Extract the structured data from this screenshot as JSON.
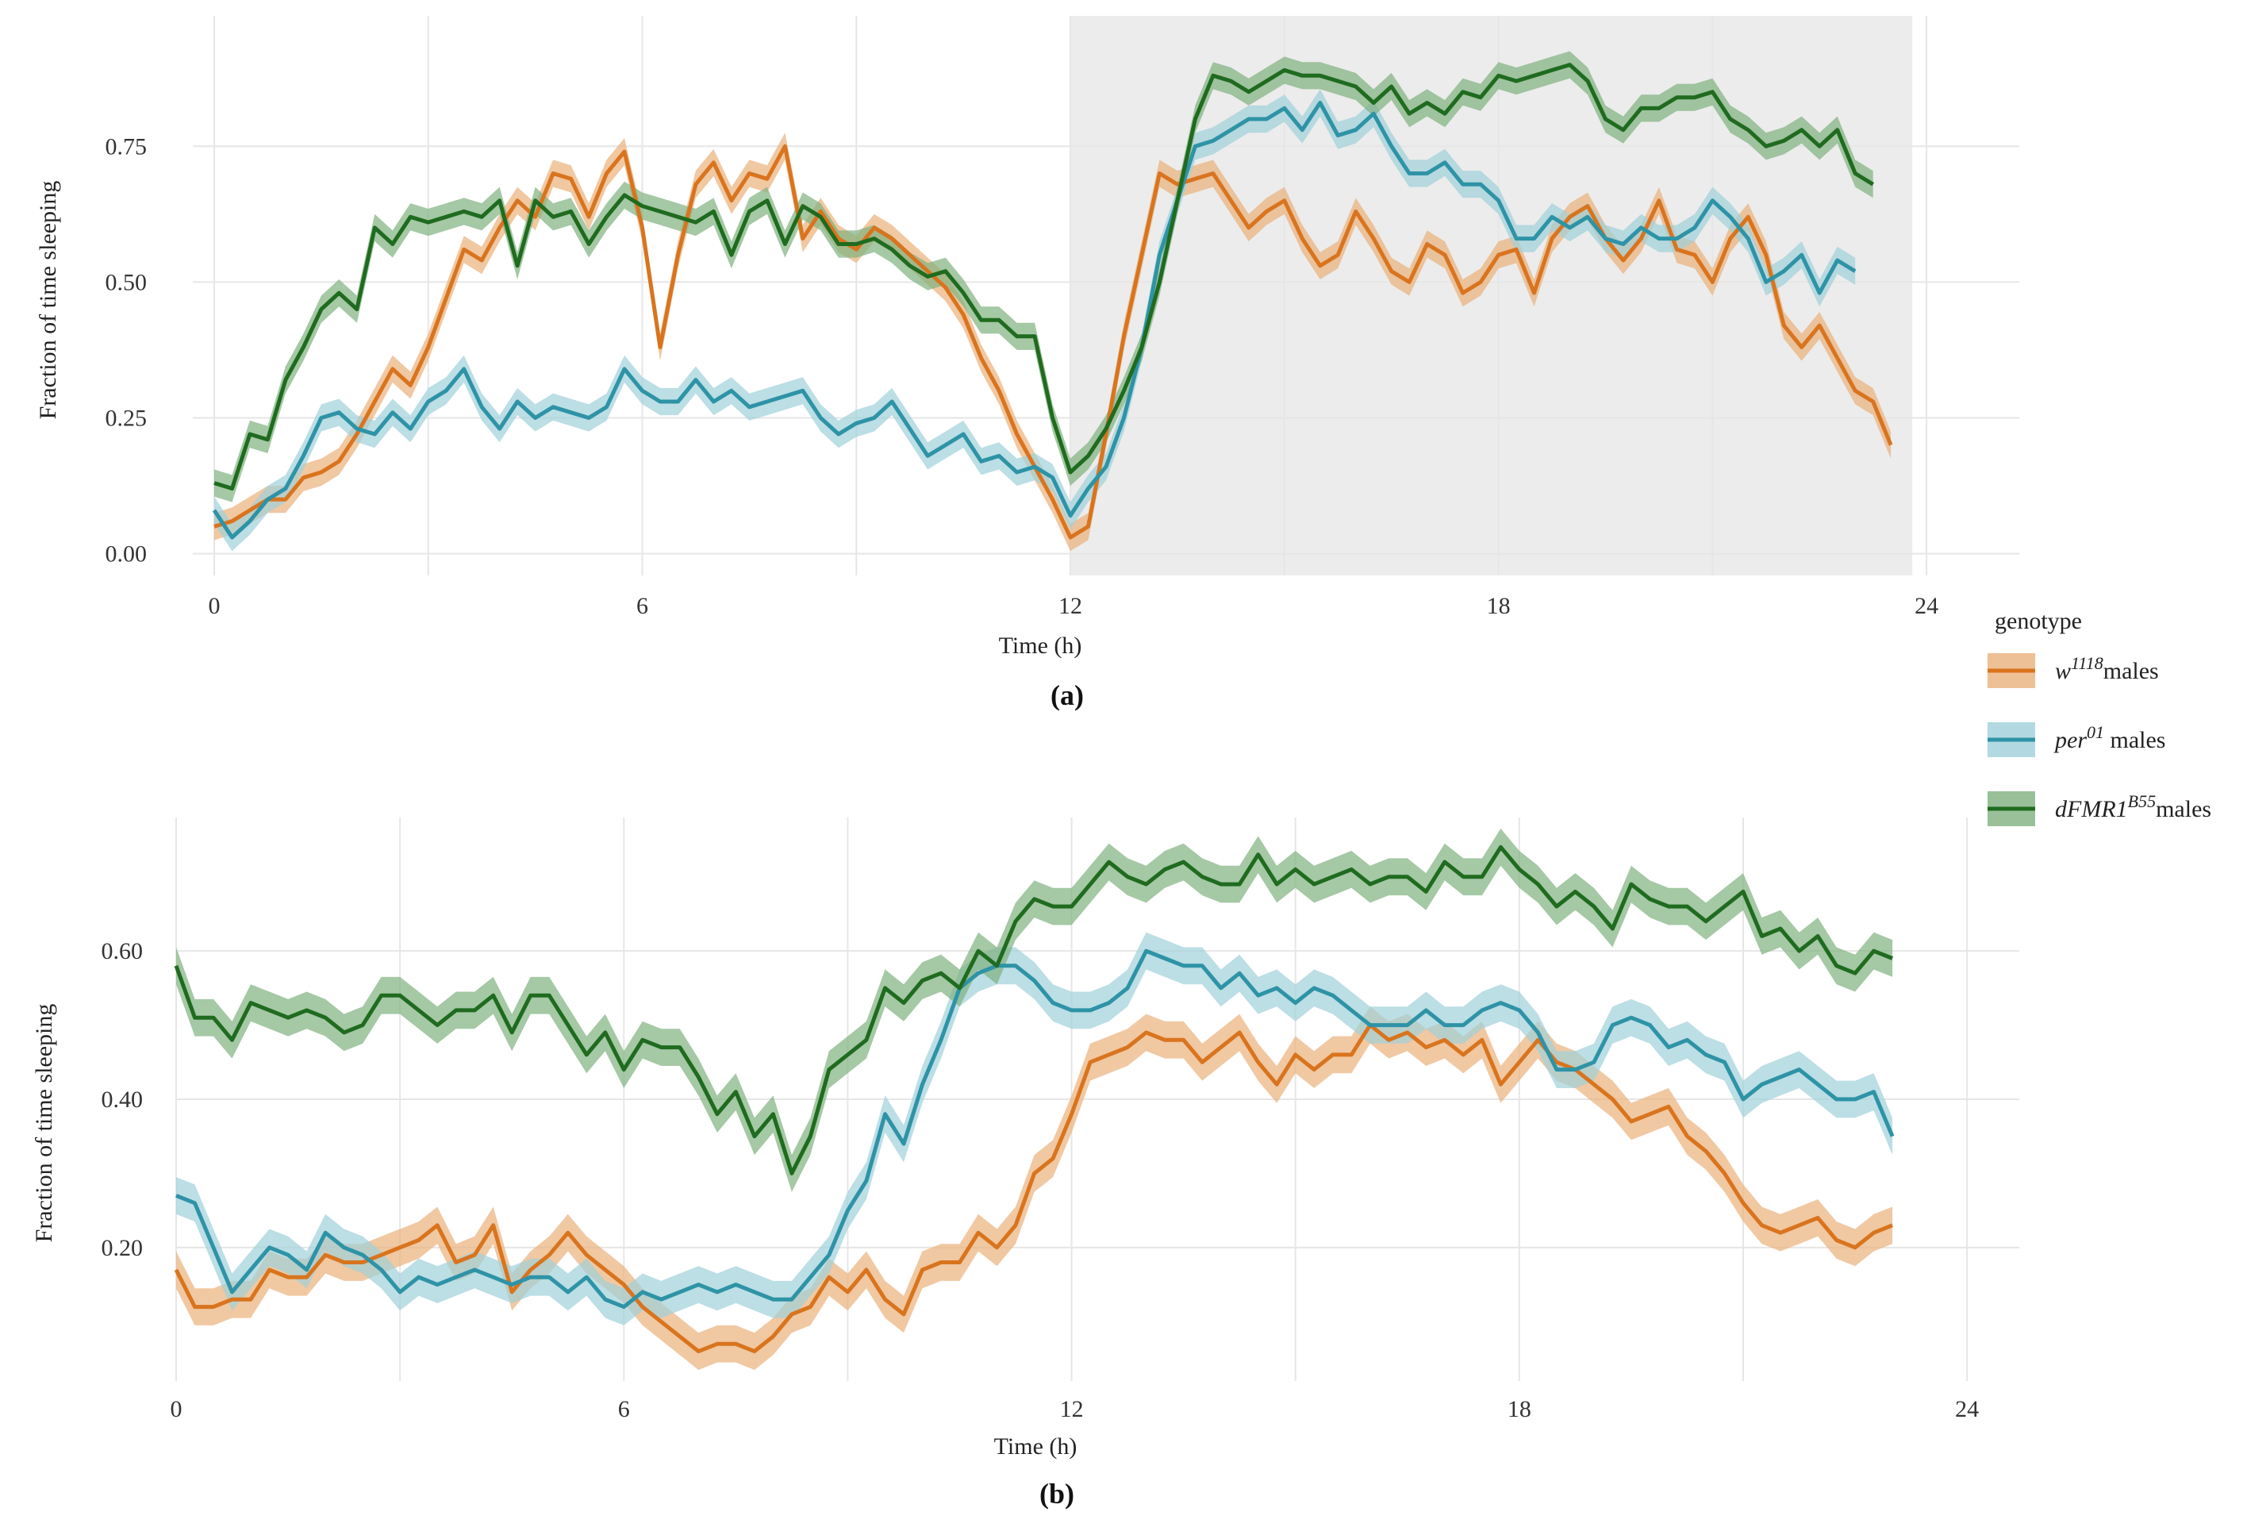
{
  "legend": {
    "title": "genotype",
    "entries": [
      {
        "key": "w1118",
        "name": "w",
        "sup": "1118",
        "suffix": "males",
        "color": "#d9741e",
        "band": "#eab07a"
      },
      {
        "key": "per01",
        "name": "per",
        "sup": "01",
        "suffix": " males",
        "color": "#2e93a6",
        "band": "#9fd0da"
      },
      {
        "key": "dFMR1",
        "name": "dFMR1",
        "sup": "B55",
        "suffix": "males",
        "color": "#1f6b1f",
        "band": "#7fb07f"
      }
    ]
  },
  "chart_data": [
    {
      "type": "line",
      "panel_label": "(a)",
      "xlabel": "Time  (h)",
      "ylabel": "Fraction of time sleeping",
      "xlim": [
        -0.3,
        25.3
      ],
      "ylim": [
        -0.04,
        0.99
      ],
      "x_ticks": [
        0,
        6,
        12,
        18,
        24
      ],
      "y_ticks": [
        0.0,
        0.25,
        0.5,
        0.75
      ],
      "y_tick_labels": [
        "0.00",
        "0.25",
        "0.50",
        "0.75"
      ],
      "dark_period": [
        12,
        23.8
      ],
      "band_halfwidth": 0.025,
      "x_start": 0,
      "x_step": 0.25,
      "series": [
        {
          "name": "w1118 males",
          "values": [
            0.05,
            0.06,
            0.08,
            0.1,
            0.1,
            0.14,
            0.15,
            0.17,
            0.22,
            0.28,
            0.34,
            0.31,
            0.38,
            0.47,
            0.56,
            0.54,
            0.6,
            0.65,
            0.62,
            0.7,
            0.69,
            0.62,
            0.7,
            0.74,
            0.6,
            0.38,
            0.55,
            0.68,
            0.72,
            0.65,
            0.7,
            0.69,
            0.75,
            0.58,
            0.63,
            0.58,
            0.56,
            0.6,
            0.58,
            0.55,
            0.52,
            0.49,
            0.44,
            0.36,
            0.3,
            0.22,
            0.16,
            0.1,
            0.03,
            0.05,
            0.22,
            0.4,
            0.55,
            0.7,
            0.68,
            0.69,
            0.7,
            0.65,
            0.6,
            0.63,
            0.65,
            0.58,
            0.53,
            0.55,
            0.63,
            0.58,
            0.52,
            0.5,
            0.57,
            0.55,
            0.48,
            0.5,
            0.55,
            0.56,
            0.48,
            0.58,
            0.62,
            0.64,
            0.58,
            0.54,
            0.58,
            0.65,
            0.56,
            0.55,
            0.5,
            0.58,
            0.62,
            0.55,
            0.42,
            0.38,
            0.42,
            0.36,
            0.3,
            0.28,
            0.2
          ]
        },
        {
          "name": "per01 males",
          "values": [
            0.08,
            0.03,
            0.06,
            0.1,
            0.12,
            0.18,
            0.25,
            0.26,
            0.23,
            0.22,
            0.26,
            0.23,
            0.28,
            0.3,
            0.34,
            0.27,
            0.23,
            0.28,
            0.25,
            0.27,
            0.26,
            0.25,
            0.27,
            0.34,
            0.3,
            0.28,
            0.28,
            0.32,
            0.28,
            0.3,
            0.27,
            0.28,
            0.29,
            0.3,
            0.25,
            0.22,
            0.24,
            0.25,
            0.28,
            0.23,
            0.18,
            0.2,
            0.22,
            0.17,
            0.18,
            0.15,
            0.16,
            0.14,
            0.07,
            0.12,
            0.16,
            0.25,
            0.38,
            0.55,
            0.65,
            0.75,
            0.76,
            0.78,
            0.8,
            0.8,
            0.82,
            0.78,
            0.83,
            0.77,
            0.78,
            0.81,
            0.75,
            0.7,
            0.7,
            0.72,
            0.68,
            0.68,
            0.65,
            0.58,
            0.58,
            0.62,
            0.6,
            0.62,
            0.58,
            0.57,
            0.6,
            0.58,
            0.58,
            0.6,
            0.65,
            0.62,
            0.58,
            0.5,
            0.52,
            0.55,
            0.48,
            0.54,
            0.52
          ]
        },
        {
          "name": "dFMR1B55 males",
          "values": [
            0.13,
            0.12,
            0.22,
            0.21,
            0.32,
            0.38,
            0.45,
            0.48,
            0.45,
            0.6,
            0.57,
            0.62,
            0.61,
            0.62,
            0.63,
            0.62,
            0.65,
            0.53,
            0.65,
            0.62,
            0.63,
            0.57,
            0.62,
            0.66,
            0.64,
            0.63,
            0.62,
            0.61,
            0.63,
            0.55,
            0.63,
            0.65,
            0.57,
            0.64,
            0.62,
            0.57,
            0.57,
            0.58,
            0.56,
            0.53,
            0.51,
            0.52,
            0.48,
            0.43,
            0.43,
            0.4,
            0.4,
            0.25,
            0.15,
            0.18,
            0.23,
            0.3,
            0.38,
            0.5,
            0.65,
            0.8,
            0.88,
            0.87,
            0.85,
            0.87,
            0.89,
            0.88,
            0.88,
            0.87,
            0.86,
            0.83,
            0.86,
            0.81,
            0.83,
            0.81,
            0.85,
            0.84,
            0.88,
            0.87,
            0.88,
            0.89,
            0.9,
            0.87,
            0.8,
            0.78,
            0.82,
            0.82,
            0.84,
            0.84,
            0.85,
            0.8,
            0.78,
            0.75,
            0.76,
            0.78,
            0.75,
            0.78,
            0.7,
            0.68
          ]
        }
      ]
    },
    {
      "type": "line",
      "panel_label": "(b)",
      "xlabel": "Time  (h)",
      "ylabel": "Fraction of time sleeping",
      "xlim": [
        0,
        24.7
      ],
      "ylim": [
        0.02,
        0.78
      ],
      "x_ticks": [
        0,
        6,
        12,
        18,
        24
      ],
      "y_ticks": [
        0.2,
        0.4,
        0.6
      ],
      "y_tick_labels": [
        "0.20",
        "0.40",
        "0.60"
      ],
      "dark_period": null,
      "band_halfwidth": 0.025,
      "x_start": 0,
      "x_step": 0.25,
      "series": [
        {
          "name": "w1118 males",
          "values": [
            0.17,
            0.12,
            0.12,
            0.13,
            0.13,
            0.17,
            0.16,
            0.16,
            0.19,
            0.18,
            0.18,
            0.19,
            0.2,
            0.21,
            0.23,
            0.18,
            0.19,
            0.23,
            0.14,
            0.17,
            0.19,
            0.22,
            0.19,
            0.17,
            0.15,
            0.12,
            0.1,
            0.08,
            0.06,
            0.07,
            0.07,
            0.06,
            0.08,
            0.11,
            0.12,
            0.16,
            0.14,
            0.17,
            0.13,
            0.11,
            0.17,
            0.18,
            0.18,
            0.22,
            0.2,
            0.23,
            0.3,
            0.32,
            0.38,
            0.45,
            0.46,
            0.47,
            0.49,
            0.48,
            0.48,
            0.45,
            0.47,
            0.49,
            0.45,
            0.42,
            0.46,
            0.44,
            0.46,
            0.46,
            0.5,
            0.48,
            0.49,
            0.47,
            0.48,
            0.46,
            0.48,
            0.42,
            0.45,
            0.48,
            0.45,
            0.44,
            0.42,
            0.4,
            0.37,
            0.38,
            0.39,
            0.35,
            0.33,
            0.3,
            0.26,
            0.23,
            0.22,
            0.23,
            0.24,
            0.21,
            0.2,
            0.22,
            0.23
          ]
        },
        {
          "name": "per01 males",
          "values": [
            0.27,
            0.26,
            0.2,
            0.14,
            0.17,
            0.2,
            0.19,
            0.17,
            0.22,
            0.2,
            0.19,
            0.17,
            0.14,
            0.16,
            0.15,
            0.16,
            0.17,
            0.16,
            0.15,
            0.16,
            0.16,
            0.14,
            0.16,
            0.13,
            0.12,
            0.14,
            0.13,
            0.14,
            0.15,
            0.14,
            0.15,
            0.14,
            0.13,
            0.13,
            0.16,
            0.19,
            0.25,
            0.29,
            0.38,
            0.34,
            0.42,
            0.48,
            0.55,
            0.57,
            0.58,
            0.58,
            0.56,
            0.53,
            0.52,
            0.52,
            0.53,
            0.55,
            0.6,
            0.59,
            0.58,
            0.58,
            0.55,
            0.57,
            0.54,
            0.55,
            0.53,
            0.55,
            0.54,
            0.52,
            0.5,
            0.5,
            0.5,
            0.52,
            0.5,
            0.5,
            0.52,
            0.53,
            0.52,
            0.49,
            0.44,
            0.44,
            0.45,
            0.5,
            0.51,
            0.5,
            0.47,
            0.48,
            0.46,
            0.45,
            0.4,
            0.42,
            0.43,
            0.44,
            0.42,
            0.4,
            0.4,
            0.41,
            0.35
          ]
        },
        {
          "name": "dFMR1B55 males",
          "values": [
            0.58,
            0.51,
            0.51,
            0.48,
            0.53,
            0.52,
            0.51,
            0.52,
            0.51,
            0.49,
            0.5,
            0.54,
            0.54,
            0.52,
            0.5,
            0.52,
            0.52,
            0.54,
            0.49,
            0.54,
            0.54,
            0.5,
            0.46,
            0.49,
            0.44,
            0.48,
            0.47,
            0.47,
            0.43,
            0.38,
            0.41,
            0.35,
            0.38,
            0.3,
            0.35,
            0.44,
            0.46,
            0.48,
            0.55,
            0.53,
            0.56,
            0.57,
            0.55,
            0.6,
            0.58,
            0.64,
            0.67,
            0.66,
            0.66,
            0.69,
            0.72,
            0.7,
            0.69,
            0.71,
            0.72,
            0.7,
            0.69,
            0.69,
            0.73,
            0.69,
            0.71,
            0.69,
            0.7,
            0.71,
            0.69,
            0.7,
            0.7,
            0.68,
            0.72,
            0.7,
            0.7,
            0.74,
            0.71,
            0.69,
            0.66,
            0.68,
            0.66,
            0.63,
            0.69,
            0.67,
            0.66,
            0.66,
            0.64,
            0.66,
            0.68,
            0.62,
            0.63,
            0.6,
            0.62,
            0.58,
            0.57,
            0.6,
            0.59
          ]
        }
      ]
    }
  ]
}
